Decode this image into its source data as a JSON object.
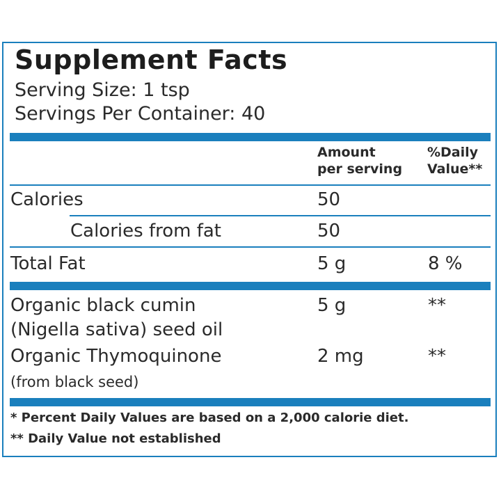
{
  "title": "Supplement Facts",
  "serving_size": "Serving Size: 1 tsp",
  "servings_per_container": "Servings Per Container: 40",
  "columns": {
    "amount_line1": "Amount",
    "amount_line2": "per serving",
    "dv_line1": "%Daily",
    "dv_line2": "Value**"
  },
  "rows": {
    "calories": {
      "label": "Calories",
      "amount": "50",
      "dv": ""
    },
    "calories_fat": {
      "label": "Calories from fat",
      "amount": "50",
      "dv": ""
    },
    "total_fat": {
      "label": "Total Fat",
      "amount": "5 g",
      "dv": "8 %"
    },
    "black_cumin": {
      "label_line1": "Organic black cumin",
      "label_line2": "(Nigella sativa) seed oil",
      "amount": "5 g",
      "dv": "**"
    },
    "thymoquinone": {
      "label_line1": "Organic Thymoquinone",
      "label_line2": "(from black seed)",
      "amount": "2 mg",
      "dv": "**"
    }
  },
  "footnotes": [
    "* Percent Daily Values are based on a 2,000 calorie diet.",
    "** Daily Value not established"
  ],
  "colors": {
    "rule": "#1a7fbd",
    "text": "#222222"
  }
}
